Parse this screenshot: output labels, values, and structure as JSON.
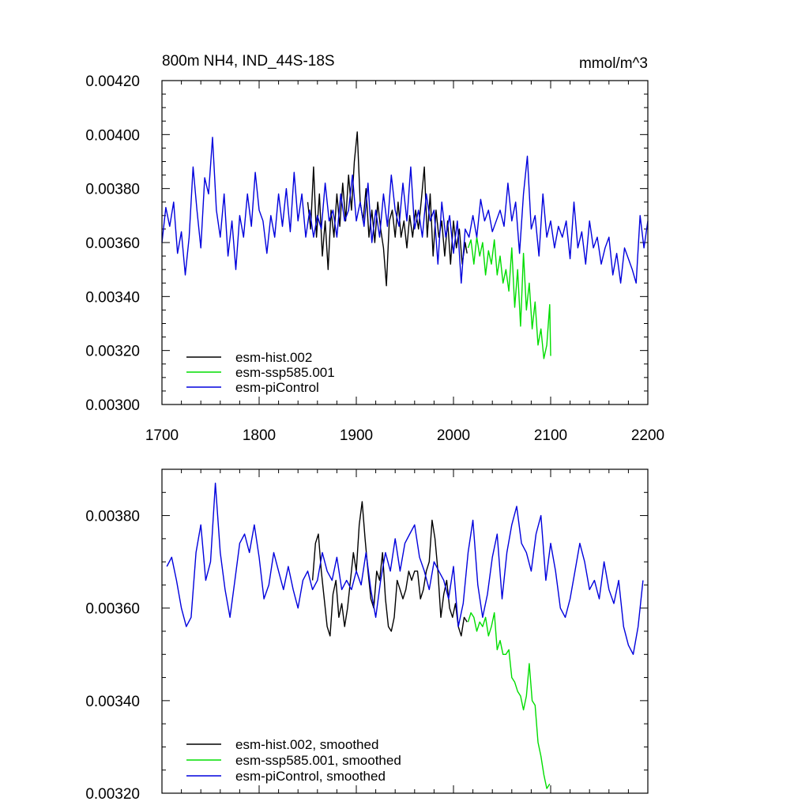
{
  "chart_data": [
    {
      "type": "line",
      "title_left": "800m NH4, IND_44S-18S",
      "title_right": "mmol/m^3",
      "xlim": [
        1700,
        2200
      ],
      "ylim": [
        0.003,
        0.0042
      ],
      "x_ticks": [
        "1700",
        "1800",
        "1900",
        "2000",
        "2100",
        "2200"
      ],
      "y_ticks": [
        "0.00300",
        "0.00320",
        "0.00340",
        "0.00360",
        "0.00380",
        "0.00400",
        "0.00420"
      ],
      "series": [
        {
          "name": "esm-hist.002",
          "color": "#000000",
          "x": [
            1850,
            1853,
            1856,
            1859,
            1862,
            1865,
            1868,
            1871,
            1874,
            1877,
            1880,
            1883,
            1886,
            1889,
            1892,
            1895,
            1898,
            1901,
            1904,
            1907,
            1910,
            1913,
            1916,
            1919,
            1922,
            1925,
            1928,
            1931,
            1934,
            1937,
            1940,
            1943,
            1946,
            1949,
            1952,
            1955,
            1958,
            1961,
            1964,
            1967,
            1970,
            1973,
            1976,
            1979,
            1982,
            1985,
            1988,
            1991,
            1994,
            1997,
            2000,
            2003,
            2006,
            2009,
            2012,
            2014
          ],
          "values": [
            0.00375,
            0.00365,
            0.00388,
            0.00362,
            0.00378,
            0.00355,
            0.00368,
            0.0035,
            0.00372,
            0.00362,
            0.00378,
            0.00366,
            0.00382,
            0.00368,
            0.00385,
            0.00372,
            0.0039,
            0.00401,
            0.00375,
            0.00368,
            0.0038,
            0.00362,
            0.00372,
            0.0036,
            0.00375,
            0.00365,
            0.00358,
            0.00344,
            0.00368,
            0.00372,
            0.00362,
            0.00375,
            0.00362,
            0.00368,
            0.00358,
            0.0037,
            0.00362,
            0.00372,
            0.00365,
            0.00376,
            0.00388,
            0.00362,
            0.00378,
            0.00355,
            0.00372,
            0.00362,
            0.00368,
            0.00355,
            0.00368,
            0.00352,
            0.00368,
            0.00358,
            0.00365,
            0.00352,
            0.0036,
            0.00356
          ]
        },
        {
          "name": "esm-ssp585.001",
          "color": "#00dd00",
          "x": [
            2015,
            2018,
            2021,
            2024,
            2027,
            2030,
            2033,
            2036,
            2039,
            2042,
            2045,
            2048,
            2051,
            2054,
            2057,
            2060,
            2063,
            2066,
            2069,
            2072,
            2075,
            2078,
            2081,
            2084,
            2087,
            2090,
            2093,
            2096,
            2099,
            2100
          ],
          "values": [
            0.00358,
            0.00361,
            0.00352,
            0.00362,
            0.00355,
            0.0036,
            0.00348,
            0.00357,
            0.00352,
            0.00361,
            0.00348,
            0.00355,
            0.00345,
            0.0035,
            0.00342,
            0.00358,
            0.00336,
            0.0035,
            0.00329,
            0.00356,
            0.00335,
            0.00345,
            0.00328,
            0.00338,
            0.00322,
            0.00328,
            0.00317,
            0.00322,
            0.00337,
            0.00318
          ]
        },
        {
          "name": "esm-piControl",
          "color": "#0000dd",
          "x": [
            1700,
            1704,
            1708,
            1712,
            1716,
            1720,
            1724,
            1728,
            1732,
            1736,
            1740,
            1744,
            1748,
            1752,
            1756,
            1760,
            1764,
            1768,
            1772,
            1776,
            1780,
            1784,
            1788,
            1792,
            1796,
            1800,
            1804,
            1808,
            1812,
            1816,
            1820,
            1824,
            1828,
            1832,
            1836,
            1840,
            1844,
            1848,
            1852,
            1856,
            1860,
            1864,
            1868,
            1872,
            1876,
            1880,
            1884,
            1888,
            1892,
            1896,
            1900,
            1904,
            1908,
            1912,
            1916,
            1920,
            1924,
            1928,
            1932,
            1936,
            1940,
            1944,
            1948,
            1952,
            1956,
            1960,
            1964,
            1968,
            1972,
            1976,
            1980,
            1984,
            1988,
            1992,
            1996,
            2000,
            2004,
            2008,
            2012,
            2016,
            2020,
            2024,
            2028,
            2032,
            2036,
            2040,
            2044,
            2048,
            2052,
            2056,
            2060,
            2064,
            2068,
            2072,
            2076,
            2080,
            2084,
            2088,
            2092,
            2096,
            2100,
            2104,
            2108,
            2112,
            2116,
            2120,
            2124,
            2128,
            2132,
            2136,
            2140,
            2144,
            2148,
            2152,
            2156,
            2160,
            2164,
            2168,
            2172,
            2176,
            2180,
            2184,
            2188,
            2192,
            2196,
            2200
          ],
          "values": [
            0.0036,
            0.00373,
            0.00366,
            0.00375,
            0.00356,
            0.00364,
            0.00348,
            0.00362,
            0.00388,
            0.00372,
            0.00358,
            0.00384,
            0.00378,
            0.00399,
            0.00372,
            0.00362,
            0.00378,
            0.00355,
            0.00368,
            0.0035,
            0.0037,
            0.00362,
            0.00378,
            0.00366,
            0.00386,
            0.00372,
            0.00368,
            0.00356,
            0.0037,
            0.00362,
            0.00378,
            0.00366,
            0.0038,
            0.00364,
            0.00386,
            0.00368,
            0.00378,
            0.00362,
            0.00372,
            0.00362,
            0.0037,
            0.00365,
            0.00382,
            0.00368,
            0.00372,
            0.00362,
            0.00378,
            0.00368,
            0.00372,
            0.00385,
            0.00368,
            0.00375,
            0.00366,
            0.00382,
            0.0036,
            0.00372,
            0.00362,
            0.00378,
            0.00366,
            0.00385,
            0.00372,
            0.00366,
            0.00382,
            0.00368,
            0.00388,
            0.00365,
            0.00372,
            0.00362,
            0.00378,
            0.00368,
            0.00372,
            0.00352,
            0.00375,
            0.00362,
            0.0037,
            0.00356,
            0.00368,
            0.00345,
            0.00365,
            0.00362,
            0.0037,
            0.00362,
            0.00376,
            0.00368,
            0.00372,
            0.00364,
            0.00368,
            0.00372,
            0.00366,
            0.00382,
            0.00368,
            0.00375,
            0.00356,
            0.00378,
            0.00392,
            0.00365,
            0.0037,
            0.00355,
            0.00378,
            0.00362,
            0.00368,
            0.00358,
            0.00366,
            0.00362,
            0.00368,
            0.00354,
            0.00375,
            0.00358,
            0.00364,
            0.00352,
            0.00368,
            0.00358,
            0.00362,
            0.00352,
            0.00358,
            0.00362,
            0.00348,
            0.00356,
            0.00345,
            0.00358,
            0.00354,
            0.0035,
            0.00345,
            0.0037,
            0.00358,
            0.00368
          ]
        }
      ]
    },
    {
      "type": "line",
      "xlim": [
        1700,
        2200
      ],
      "ylim": [
        0.0032,
        0.0039
      ],
      "y_ticks": [
        "0.00320",
        "0.00340",
        "0.00360",
        "0.00380"
      ],
      "series": [
        {
          "name": "esm-hist.002, smoothed",
          "color": "#000000",
          "x": [
            1855,
            1858,
            1861,
            1864,
            1867,
            1870,
            1873,
            1876,
            1879,
            1882,
            1885,
            1888,
            1891,
            1894,
            1897,
            1900,
            1903,
            1906,
            1909,
            1912,
            1915,
            1918,
            1921,
            1924,
            1927,
            1930,
            1933,
            1936,
            1939,
            1942,
            1945,
            1948,
            1951,
            1954,
            1957,
            1960,
            1963,
            1966,
            1969,
            1972,
            1975,
            1978,
            1981,
            1984,
            1987,
            1990,
            1993,
            1996,
            1999,
            2002,
            2005,
            2008,
            2011,
            2014
          ],
          "values": [
            0.00366,
            0.00374,
            0.00376,
            0.00368,
            0.00362,
            0.00356,
            0.00354,
            0.00363,
            0.00366,
            0.00358,
            0.00361,
            0.00356,
            0.0036,
            0.00366,
            0.00372,
            0.00368,
            0.00378,
            0.00383,
            0.00375,
            0.00368,
            0.00362,
            0.0036,
            0.00368,
            0.00366,
            0.00372,
            0.00362,
            0.00356,
            0.00355,
            0.00358,
            0.00366,
            0.00364,
            0.00362,
            0.00364,
            0.00368,
            0.00366,
            0.00368,
            0.00368,
            0.00362,
            0.00364,
            0.00368,
            0.0037,
            0.00379,
            0.00375,
            0.00368,
            0.00358,
            0.00363,
            0.00366,
            0.0036,
            0.00358,
            0.00361,
            0.00356,
            0.00354,
            0.00358,
            0.00357
          ]
        },
        {
          "name": "esm-ssp585.001, smoothed",
          "color": "#00dd00",
          "x": [
            2015,
            2018,
            2021,
            2024,
            2027,
            2030,
            2033,
            2036,
            2039,
            2042,
            2045,
            2048,
            2051,
            2054,
            2057,
            2060,
            2063,
            2066,
            2069,
            2072,
            2075,
            2078,
            2081,
            2084,
            2087,
            2090,
            2093,
            2096,
            2099
          ],
          "values": [
            0.00357,
            0.00359,
            0.00358,
            0.00355,
            0.00357,
            0.00356,
            0.00358,
            0.00354,
            0.00356,
            0.00359,
            0.00351,
            0.00353,
            0.0035,
            0.0035,
            0.00351,
            0.00345,
            0.00344,
            0.00342,
            0.00341,
            0.00338,
            0.00341,
            0.00348,
            0.0034,
            0.00339,
            0.00331,
            0.00328,
            0.00324,
            0.00321,
            0.00322
          ]
        },
        {
          "name": "esm-piControl, smoothed",
          "color": "#0000dd",
          "x": [
            1705,
            1710,
            1715,
            1720,
            1725,
            1730,
            1735,
            1740,
            1745,
            1750,
            1755,
            1760,
            1765,
            1770,
            1775,
            1780,
            1785,
            1790,
            1795,
            1800,
            1805,
            1810,
            1815,
            1820,
            1825,
            1830,
            1835,
            1840,
            1845,
            1850,
            1855,
            1860,
            1865,
            1870,
            1875,
            1880,
            1885,
            1890,
            1895,
            1900,
            1905,
            1910,
            1915,
            1920,
            1925,
            1930,
            1935,
            1940,
            1945,
            1950,
            1955,
            1960,
            1965,
            1970,
            1975,
            1980,
            1985,
            1990,
            1995,
            2000,
            2005,
            2010,
            2015,
            2020,
            2025,
            2030,
            2035,
            2040,
            2045,
            2050,
            2055,
            2060,
            2065,
            2070,
            2075,
            2080,
            2085,
            2090,
            2095,
            2100,
            2105,
            2110,
            2115,
            2120,
            2125,
            2130,
            2135,
            2140,
            2145,
            2150,
            2155,
            2160,
            2165,
            2170,
            2175,
            2180,
            2185,
            2190,
            2195
          ],
          "values": [
            0.00369,
            0.00371,
            0.00366,
            0.0036,
            0.00356,
            0.00358,
            0.00372,
            0.00378,
            0.00366,
            0.0037,
            0.00387,
            0.00372,
            0.00364,
            0.00358,
            0.00366,
            0.00374,
            0.00376,
            0.00372,
            0.00378,
            0.00371,
            0.00362,
            0.00365,
            0.00372,
            0.00368,
            0.00364,
            0.00369,
            0.00364,
            0.0036,
            0.00366,
            0.00368,
            0.00364,
            0.00366,
            0.00372,
            0.00368,
            0.00366,
            0.00371,
            0.00364,
            0.00366,
            0.00364,
            0.00368,
            0.00365,
            0.00372,
            0.00364,
            0.00358,
            0.00366,
            0.00372,
            0.00368,
            0.00375,
            0.00368,
            0.00374,
            0.00376,
            0.00378,
            0.00371,
            0.00368,
            0.00364,
            0.0037,
            0.00368,
            0.00366,
            0.00362,
            0.00369,
            0.00356,
            0.00361,
            0.00372,
            0.00379,
            0.00365,
            0.00358,
            0.00363,
            0.00371,
            0.00376,
            0.00362,
            0.00372,
            0.00378,
            0.00382,
            0.00374,
            0.00372,
            0.00368,
            0.00376,
            0.0038,
            0.00366,
            0.00374,
            0.00368,
            0.0036,
            0.00358,
            0.00362,
            0.00368,
            0.00374,
            0.0037,
            0.00364,
            0.00366,
            0.00362,
            0.0037,
            0.00364,
            0.00361,
            0.00366,
            0.00356,
            0.00352,
            0.0035,
            0.00356,
            0.00366
          ]
        }
      ]
    }
  ]
}
